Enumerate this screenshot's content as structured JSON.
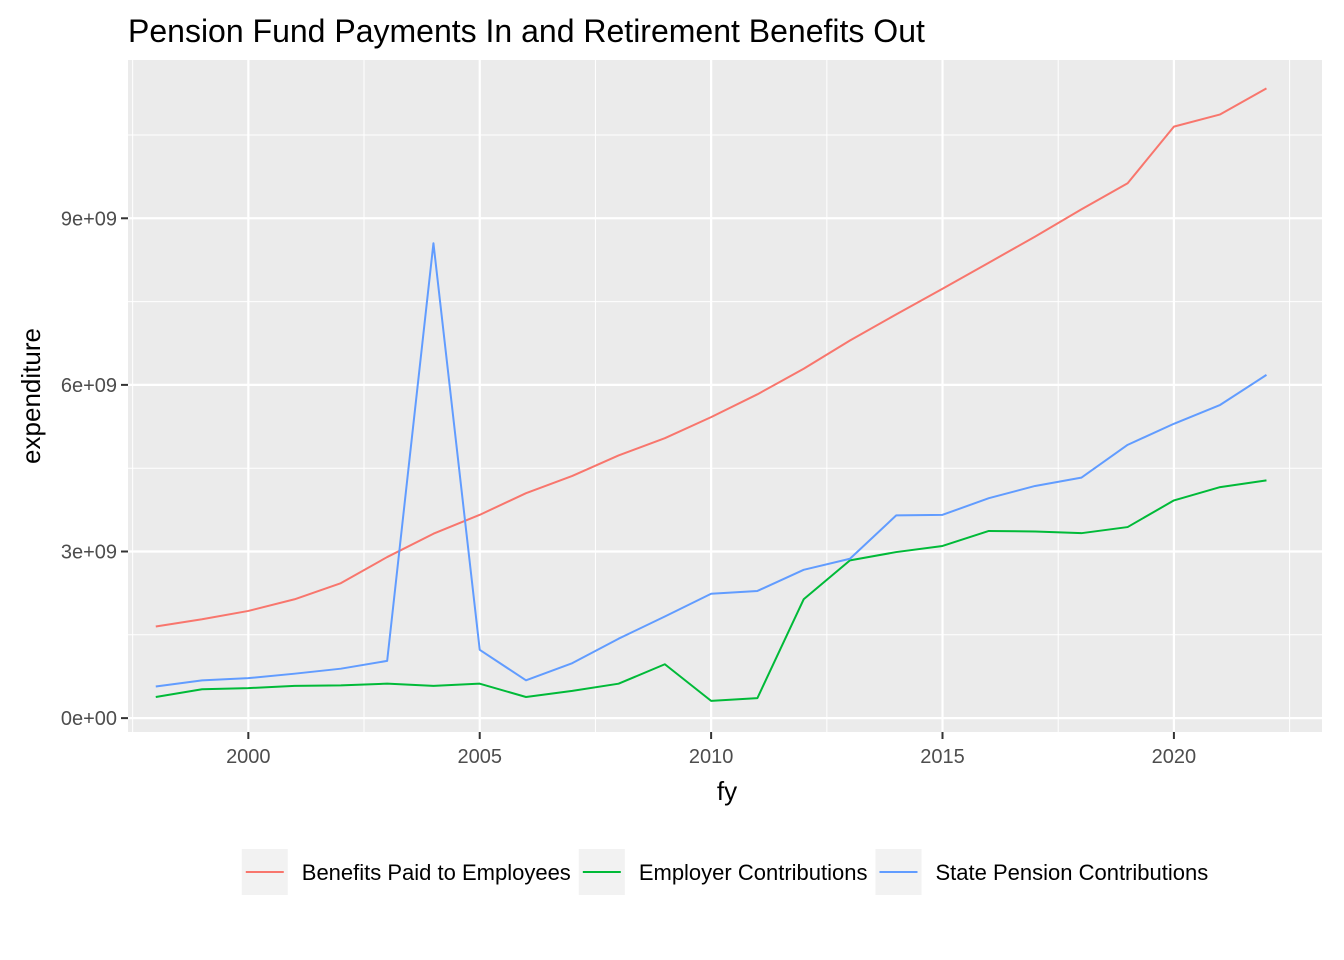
{
  "chart_data": {
    "type": "line",
    "title": "Pension Fund Payments In and Retirement Benefits Out",
    "xlabel": "fy",
    "ylabel": "expenditure",
    "xlim": [
      1997.4,
      2023.2
    ],
    "ylim": [
      -250000000,
      11850000000
    ],
    "x_ticks": [
      2000,
      2005,
      2010,
      2015,
      2020
    ],
    "x_tick_labels": [
      "2000",
      "2005",
      "2010",
      "2015",
      "2020"
    ],
    "y_ticks": [
      0,
      3000000000,
      6000000000,
      9000000000
    ],
    "y_tick_labels": [
      "0e+00",
      "3e+09",
      "6e+09",
      "9e+09"
    ],
    "grid": true,
    "legend_position": "bottom",
    "x": [
      1998,
      1999,
      2000,
      2001,
      2002,
      2003,
      2004,
      2005,
      2006,
      2007,
      2008,
      2009,
      2010,
      2011,
      2012,
      2013,
      2014,
      2015,
      2016,
      2017,
      2018,
      2019,
      2020,
      2021,
      2022
    ],
    "series": [
      {
        "name": "Benefits Paid to Employees",
        "color": "#F8766D",
        "values": [
          1650000000,
          1780000000,
          1930000000,
          2140000000,
          2430000000,
          2900000000,
          3320000000,
          3660000000,
          4050000000,
          4360000000,
          4730000000,
          5040000000,
          5420000000,
          5830000000,
          6290000000,
          6800000000,
          7270000000,
          7730000000,
          8200000000,
          8670000000,
          9160000000,
          9630000000,
          10650000000,
          10870000000,
          11340000000
        ]
      },
      {
        "name": "Employer Contributions",
        "color": "#00BA38",
        "values": [
          380000000,
          520000000,
          540000000,
          580000000,
          590000000,
          620000000,
          580000000,
          620000000,
          380000000,
          490000000,
          620000000,
          970000000,
          310000000,
          360000000,
          2140000000,
          2840000000,
          2990000000,
          3100000000,
          3370000000,
          3360000000,
          3330000000,
          3440000000,
          3920000000,
          4160000000,
          4280000000
        ]
      },
      {
        "name": "State Pension Contributions",
        "color": "#619CFF",
        "values": [
          570000000,
          680000000,
          720000000,
          800000000,
          890000000,
          1030000000,
          8550000000,
          1230000000,
          680000000,
          990000000,
          1430000000,
          1830000000,
          2240000000,
          2290000000,
          2670000000,
          2870000000,
          3650000000,
          3660000000,
          3960000000,
          4180000000,
          4330000000,
          4920000000,
          5300000000,
          5640000000,
          6180000000
        ]
      }
    ]
  }
}
